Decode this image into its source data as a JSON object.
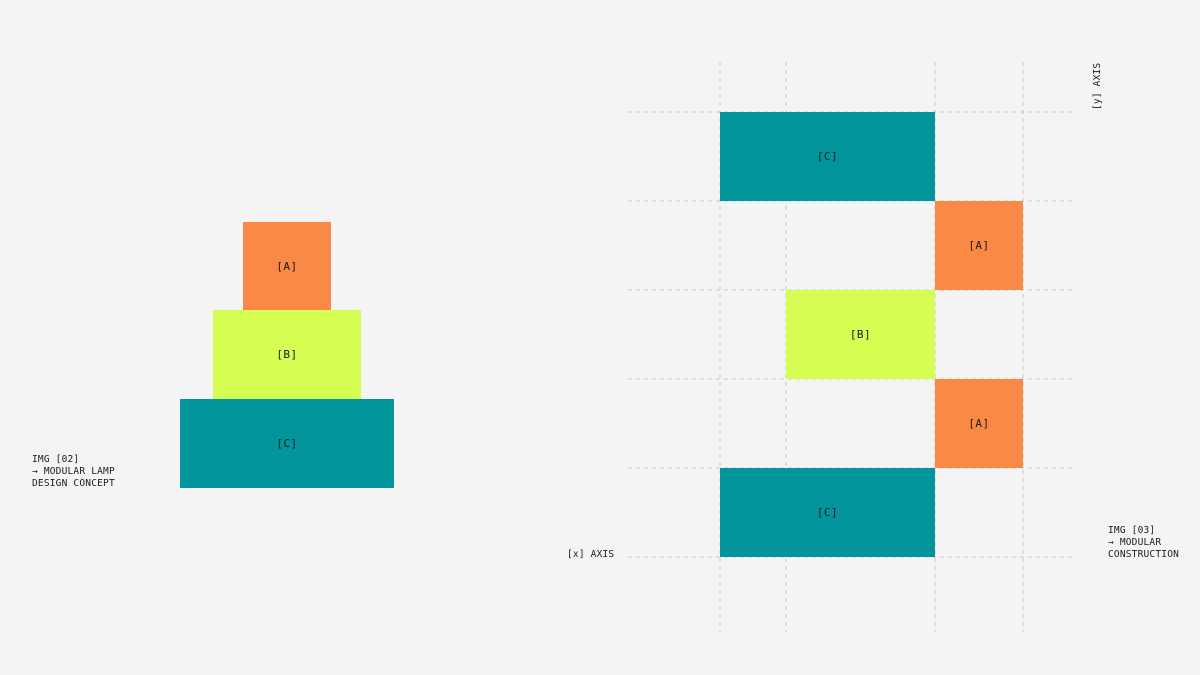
{
  "left_diagram": {
    "blocks": [
      {
        "label": "[A]",
        "color": "#f98944"
      },
      {
        "label": "[B]",
        "color": "#d6fd51"
      },
      {
        "label": "[C]",
        "color": "#02959c"
      }
    ],
    "caption": {
      "line1": "IMG [02]",
      "line2": "→ MODULAR LAMP",
      "line3": "DESIGN CONCEPT"
    }
  },
  "right_diagram": {
    "x_axis_label": "[x] AXIS",
    "y_axis_label": "[y] AXIS",
    "blocks": [
      {
        "label": "[C]",
        "color": "#02959c"
      },
      {
        "label": "[A]",
        "color": "#f98944"
      },
      {
        "label": "[B]",
        "color": "#d6fd51"
      },
      {
        "label": "[A]",
        "color": "#f98944"
      },
      {
        "label": "[C]",
        "color": "#02959c"
      }
    ],
    "caption": {
      "line1": "IMG [03]",
      "line2": "→ MODULAR",
      "line3": "CONSTRUCTION"
    }
  },
  "colors": {
    "background": "#f4f4f4",
    "orange": "#f98944",
    "lime": "#d6fd51",
    "teal": "#02959c",
    "grid": "#c9c9c9"
  }
}
